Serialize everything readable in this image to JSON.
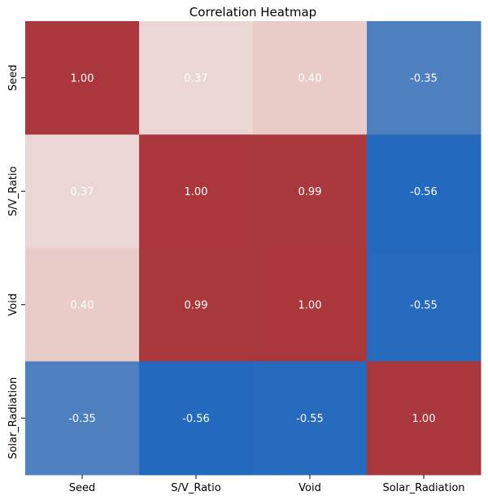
{
  "chart_data": {
    "type": "heatmap",
    "title": "Correlation Heatmap",
    "xlabel": "",
    "ylabel": "",
    "x_labels": [
      "Seed",
      "S/V_Ratio",
      "Void",
      "Solar_Radiation"
    ],
    "y_labels": [
      "Seed",
      "S/V_Ratio",
      "Void",
      "Solar_Radiation"
    ],
    "values": [
      [
        1.0,
        0.37,
        0.4,
        -0.35
      ],
      [
        0.37,
        1.0,
        0.99,
        -0.56
      ],
      [
        0.4,
        0.99,
        1.0,
        -0.55
      ],
      [
        -0.35,
        -0.56,
        -0.55,
        1.0
      ]
    ],
    "annotations": [
      [
        "1.00",
        "0.37",
        "0.40",
        "-0.35"
      ],
      [
        "0.37",
        "1.00",
        "0.99",
        "-0.56"
      ],
      [
        "0.40",
        "0.99",
        "1.00",
        "-0.55"
      ],
      [
        "-0.35",
        "-0.56",
        "-0.55",
        "1.00"
      ]
    ],
    "colormap": "vlag (blue-white-red), centered at 0",
    "vmin": -0.56,
    "vmax": 1.0,
    "colorbar": false,
    "colors": {
      "max": "#a9373b",
      "min": "#2369bd",
      "cell_text": "#ffffff",
      "axis_text": "#000000"
    }
  }
}
